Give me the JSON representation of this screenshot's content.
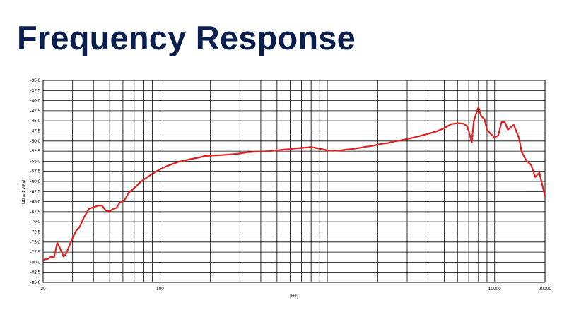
{
  "slide": {
    "title": "Frequency Response",
    "title_color": "#0b1f4f"
  },
  "chart_data": {
    "type": "line",
    "title": "",
    "xlabel": "[Hz]",
    "ylabel": "[dB re 1 V/Pa]",
    "xscale": "log",
    "xlim": [
      20,
      20000
    ],
    "ylim": [
      -85,
      -35
    ],
    "ytick_step": 2.5,
    "xtick_labels": [
      {
        "value": 20,
        "label": "20"
      },
      {
        "value": 100,
        "label": "100"
      },
      {
        "value": 10000,
        "label": "10000"
      },
      {
        "value": 20000,
        "label": "20000"
      }
    ],
    "yticks": [
      "-35.0",
      "-37.5",
      "-40.0",
      "-42.5",
      "-45.0",
      "-47.5",
      "-50.0",
      "-52.5",
      "-55.0",
      "-57.5",
      "-60.0",
      "-62.5",
      "-65.0",
      "-67.5",
      "-70.0",
      "-72.5",
      "-75.0",
      "-77.5",
      "-80.0",
      "-82.5",
      "-85.0"
    ],
    "grid": true,
    "legend": "none",
    "line_color": "#e0201e",
    "series": [
      {
        "x": [
          20,
          21.3,
          22.4,
          23.2,
          24.3,
          25.1,
          26.5,
          27.5,
          28.5,
          30.0,
          31.5,
          33.0,
          35.0,
          37.5,
          40.0,
          42.5,
          45.0,
          47.5,
          49.0,
          50.0,
          52.5,
          55.0,
          57.5,
          60.0,
          62.0,
          65.0,
          68.0,
          70.0,
          72.5,
          75.0,
          80.0,
          85.0,
          90.0,
          100.0,
          110.0,
          120.0,
          130.0,
          140.0,
          155.0,
          170.0,
          185.0,
          200.0,
          230.0,
          265.0,
          300.0,
          330.0,
          360.0,
          400.0,
          450.0,
          500.0,
          550.0,
          600.0,
          650.0,
          700.0,
          750.0,
          800.0,
          850.0,
          900.0,
          950.0,
          1000.0,
          1050.0,
          1100.0,
          1200.0,
          1300.0,
          1400.0,
          1500.0,
          1600.0,
          1700.0,
          1800.0,
          1900.0,
          2000.0,
          2100.0,
          2200.0,
          2300.0,
          2400.0,
          2500.0,
          2700.0,
          3000.0,
          3300.0,
          3600.0,
          4000.0,
          4500.0,
          5000.0,
          5500.0,
          6000.0,
          6500.0,
          6800.0,
          7000.0,
          7300.0,
          7500.0,
          7700.0,
          8000.0,
          8300.0,
          8700.0,
          9000.0,
          9500.0,
          10000.0,
          10500.0,
          11000.0,
          11500.0,
          12000.0,
          13000.0,
          14000.0,
          14500.0,
          15500.0,
          16500.0,
          17500.0,
          18500.0,
          19500.0,
          20000.0
        ],
        "y": [
          -79.4,
          -79.2,
          -78.6,
          -78.9,
          -75.2,
          -76.3,
          -78.6,
          -77.9,
          -76.2,
          -74.0,
          -72.2,
          -71.3,
          -69.0,
          -66.8,
          -66.4,
          -66.0,
          -66.0,
          -67.3,
          -67.3,
          -67.3,
          -66.8,
          -66.5,
          -65.2,
          -65.0,
          -64.3,
          -62.8,
          -62.1,
          -61.6,
          -61.1,
          -60.4,
          -59.5,
          -58.8,
          -58.1,
          -57.0,
          -56.2,
          -55.6,
          -55.1,
          -54.8,
          -54.4,
          -54.1,
          -53.7,
          -53.6,
          -53.5,
          -53.3,
          -53.1,
          -52.8,
          -52.7,
          -52.6,
          -52.5,
          -52.3,
          -52.1,
          -52.0,
          -51.8,
          -51.7,
          -51.6,
          -51.5,
          -51.7,
          -51.9,
          -52.1,
          -52.3,
          -52.4,
          -52.4,
          -52.3,
          -52.1,
          -52.0,
          -51.8,
          -51.6,
          -51.4,
          -51.3,
          -51.1,
          -50.9,
          -50.7,
          -50.6,
          -50.5,
          -50.3,
          -50.1,
          -49.9,
          -49.5,
          -49.1,
          -48.7,
          -48.2,
          -47.6,
          -46.8,
          -45.8,
          -45.6,
          -45.7,
          -46.2,
          -47.5,
          -50.3,
          -45.2,
          -43.6,
          -41.6,
          -43.8,
          -44.6,
          -47.2,
          -48.3,
          -49.1,
          -48.6,
          -45.3,
          -45.3,
          -47.2,
          -46.0,
          -49.3,
          -52.7,
          -54.9,
          -55.9,
          -58.9,
          -57.8,
          -61.8,
          -63.6
        ]
      }
    ]
  }
}
